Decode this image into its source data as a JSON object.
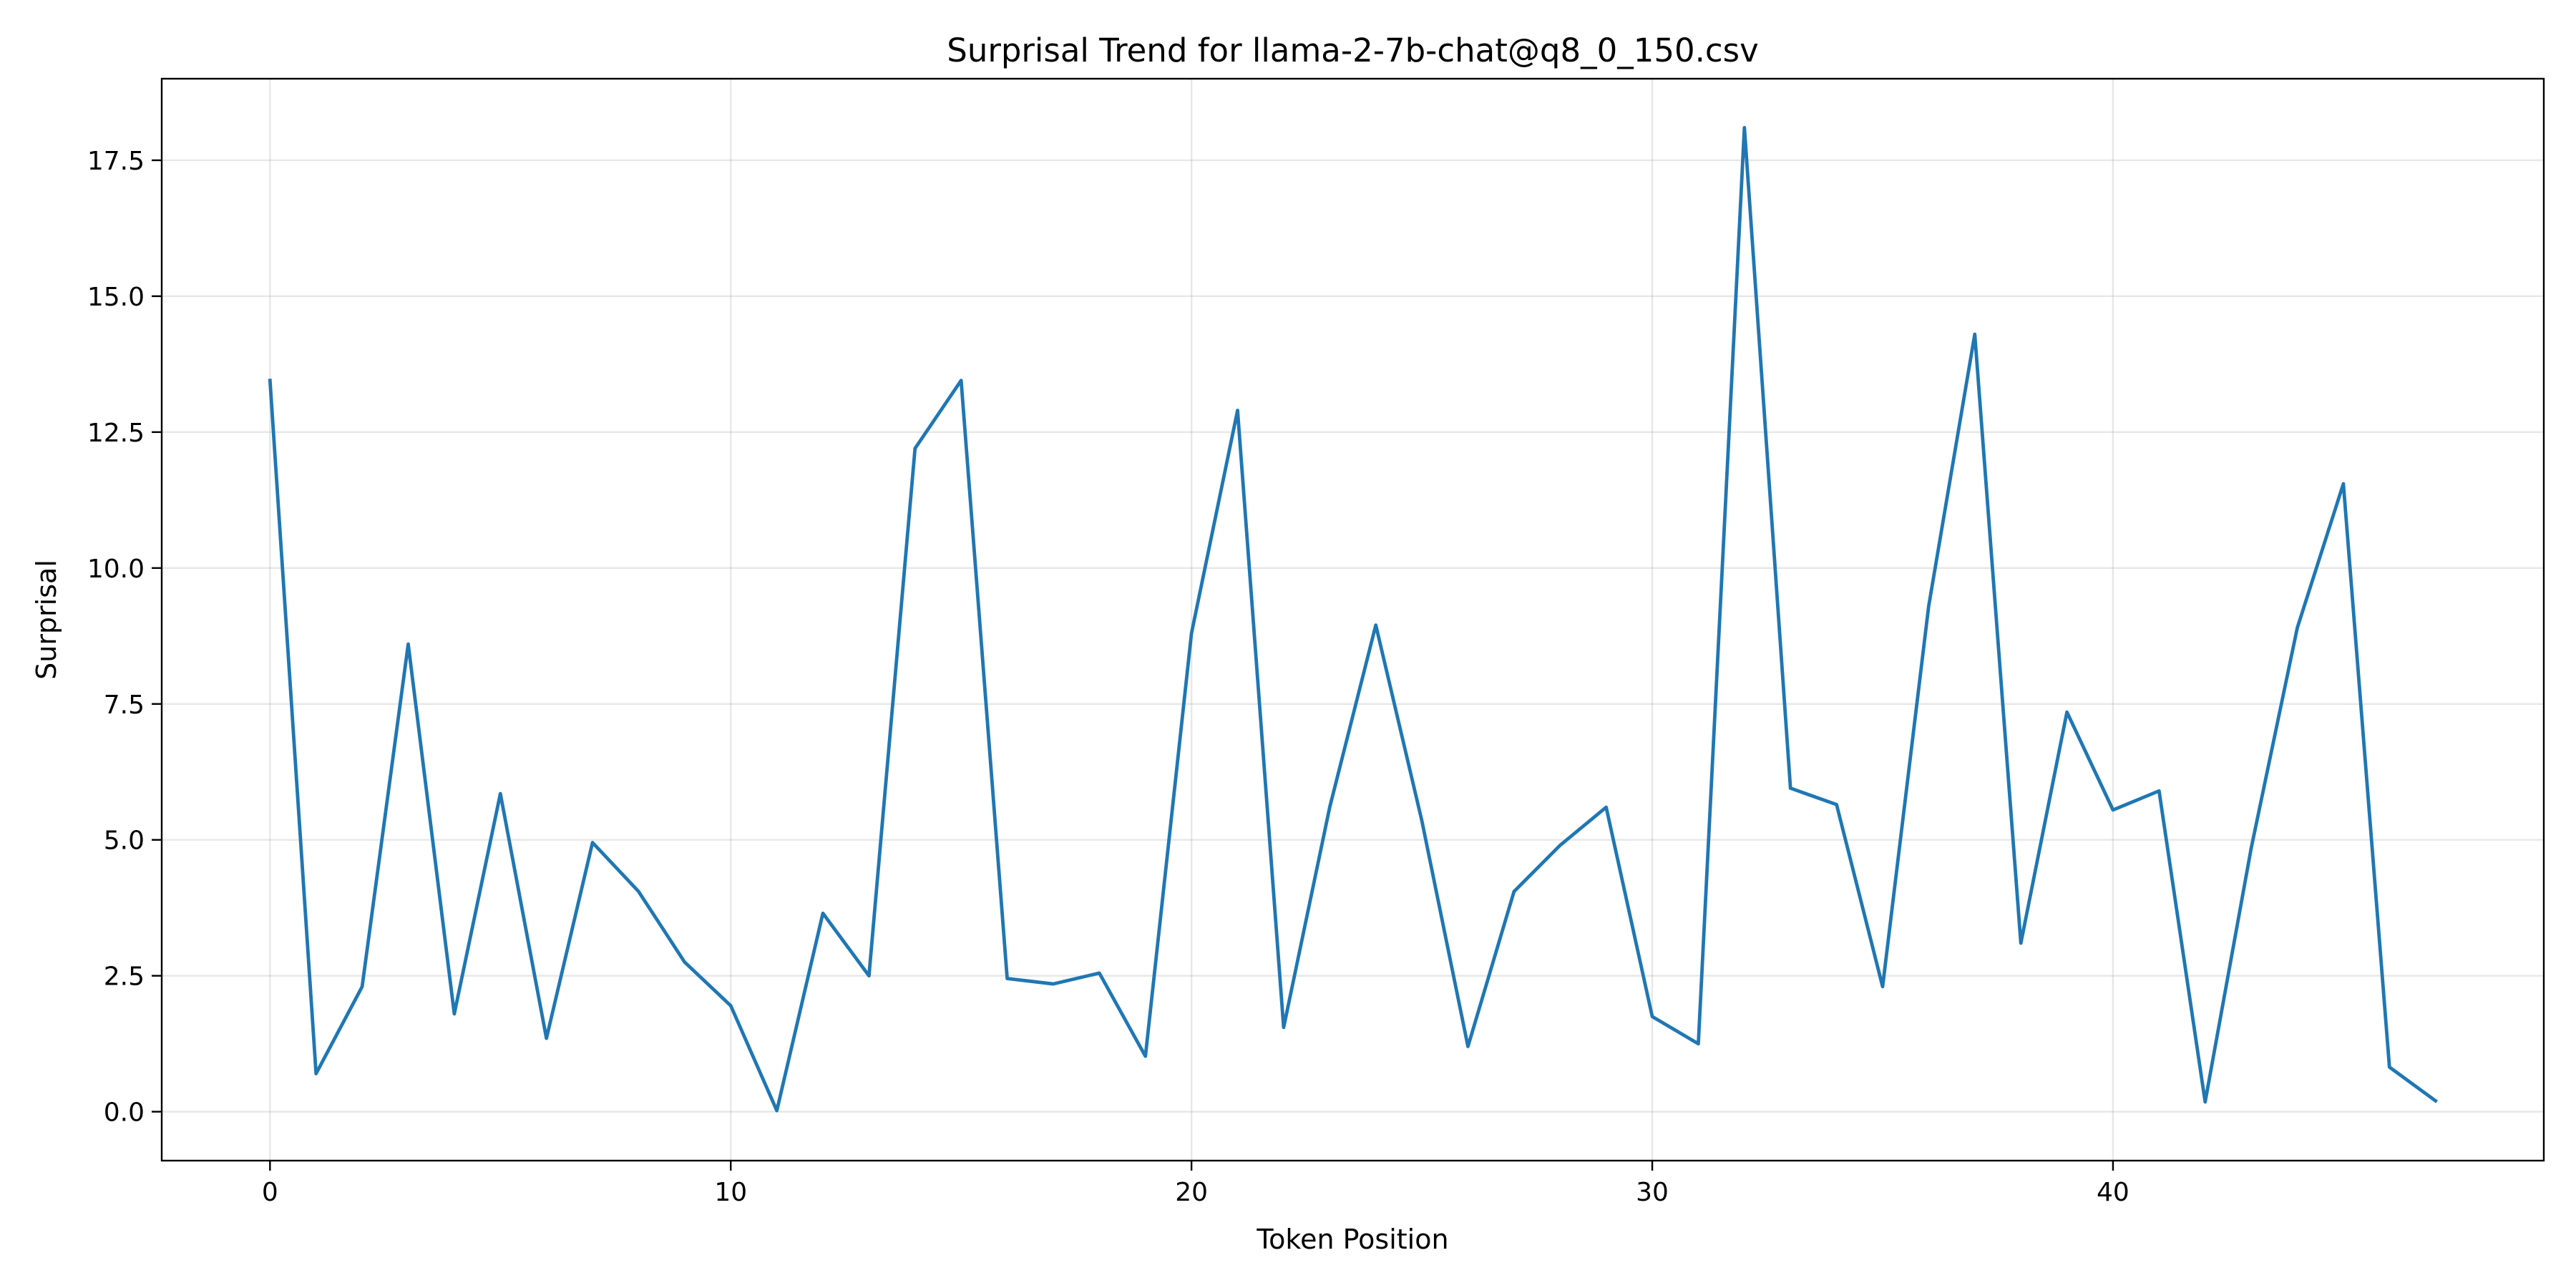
{
  "chart_data": {
    "type": "line",
    "title": "Surprisal Trend for llama-2-7b-chat@q8_0_150.csv",
    "xlabel": "Token Position",
    "ylabel": "Surprisal",
    "xlim": [
      -2.35,
      49.35
    ],
    "ylim": [
      -0.9,
      19.0
    ],
    "xticks": [
      0,
      10,
      20,
      30,
      40
    ],
    "yticks": [
      0.0,
      2.5,
      5.0,
      7.5,
      10.0,
      12.5,
      15.0,
      17.5
    ],
    "xtick_labels": [
      "0",
      "10",
      "20",
      "30",
      "40"
    ],
    "ytick_labels": [
      "0.0",
      "2.5",
      "5.0",
      "7.5",
      "10.0",
      "12.5",
      "15.0",
      "17.5"
    ],
    "grid": true,
    "legend": "none",
    "series": [
      {
        "color": "#1f77b4",
        "x": [
          0,
          1,
          2,
          3,
          4,
          5,
          6,
          7,
          8,
          9,
          10,
          11,
          12,
          13,
          14,
          15,
          16,
          17,
          18,
          19,
          20,
          21,
          22,
          23,
          24,
          25,
          26,
          27,
          28,
          29,
          30,
          31,
          32,
          33,
          34,
          35,
          36,
          37,
          38,
          39,
          40,
          41,
          42,
          43,
          44,
          45,
          46,
          47
        ],
        "values": [
          13.45,
          0.7,
          2.3,
          8.6,
          1.8,
          5.85,
          1.35,
          4.95,
          4.05,
          2.75,
          1.95,
          0.02,
          3.65,
          2.5,
          12.2,
          13.45,
          2.45,
          2.35,
          2.55,
          1.02,
          8.8,
          12.9,
          1.55,
          5.6,
          8.95,
          5.35,
          1.2,
          4.05,
          4.9,
          5.6,
          1.75,
          1.25,
          18.1,
          5.95,
          5.65,
          2.3,
          9.3,
          14.3,
          3.1,
          7.35,
          5.55,
          5.9,
          0.18,
          4.85,
          8.9,
          11.55,
          0.82,
          0.2
        ]
      }
    ]
  }
}
